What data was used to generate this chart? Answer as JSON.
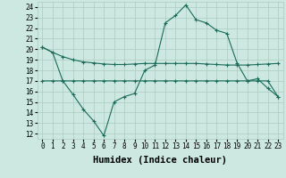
{
  "xlabel": "Humidex (Indice chaleur)",
  "bg_color": "#cce8e0",
  "line_color": "#1a6b5a",
  "grid_color": "#aaccc0",
  "xlim": [
    -0.5,
    23.5
  ],
  "ylim": [
    11.5,
    24.5
  ],
  "xticks": [
    0,
    1,
    2,
    3,
    4,
    5,
    6,
    7,
    8,
    9,
    10,
    11,
    12,
    13,
    14,
    15,
    16,
    17,
    18,
    19,
    20,
    21,
    22,
    23
  ],
  "yticks": [
    12,
    13,
    14,
    15,
    16,
    17,
    18,
    19,
    20,
    21,
    22,
    23,
    24
  ],
  "line1_x": [
    0,
    1,
    2,
    3,
    4,
    5,
    6,
    7,
    8,
    9,
    10,
    11,
    12,
    13,
    14,
    15,
    16,
    17,
    18,
    19,
    20,
    21,
    22,
    23
  ],
  "line1_y": [
    20.2,
    19.7,
    19.3,
    19.0,
    18.8,
    18.7,
    18.6,
    18.55,
    18.55,
    18.6,
    18.65,
    18.65,
    18.65,
    18.65,
    18.65,
    18.65,
    18.6,
    18.55,
    18.5,
    18.5,
    18.5,
    18.55,
    18.6,
    18.65
  ],
  "line2_x": [
    0,
    1,
    2,
    3,
    4,
    5,
    6,
    7,
    8,
    9,
    10,
    11,
    12,
    13,
    14,
    15,
    16,
    17,
    18,
    19,
    20,
    21,
    22,
    23
  ],
  "line2_y": [
    20.2,
    19.7,
    17.0,
    15.7,
    14.3,
    13.2,
    11.8,
    15.0,
    15.5,
    15.8,
    18.0,
    18.5,
    22.5,
    23.2,
    24.2,
    22.8,
    22.5,
    21.8,
    21.5,
    18.7,
    17.0,
    17.2,
    16.3,
    15.5
  ],
  "line3_x": [
    0,
    1,
    2,
    3,
    4,
    5,
    6,
    7,
    8,
    9,
    10,
    11,
    12,
    13,
    14,
    15,
    16,
    17,
    18,
    19,
    20,
    21,
    22,
    23
  ],
  "line3_y": [
    17.0,
    17.0,
    17.0,
    17.0,
    17.0,
    17.0,
    17.0,
    17.0,
    17.0,
    17.0,
    17.0,
    17.0,
    17.0,
    17.0,
    17.0,
    17.0,
    17.0,
    17.0,
    17.0,
    17.0,
    17.0,
    17.0,
    17.0,
    15.5
  ],
  "tick_fontsize": 5.5,
  "xlabel_fontsize": 7.5,
  "marker": "+"
}
